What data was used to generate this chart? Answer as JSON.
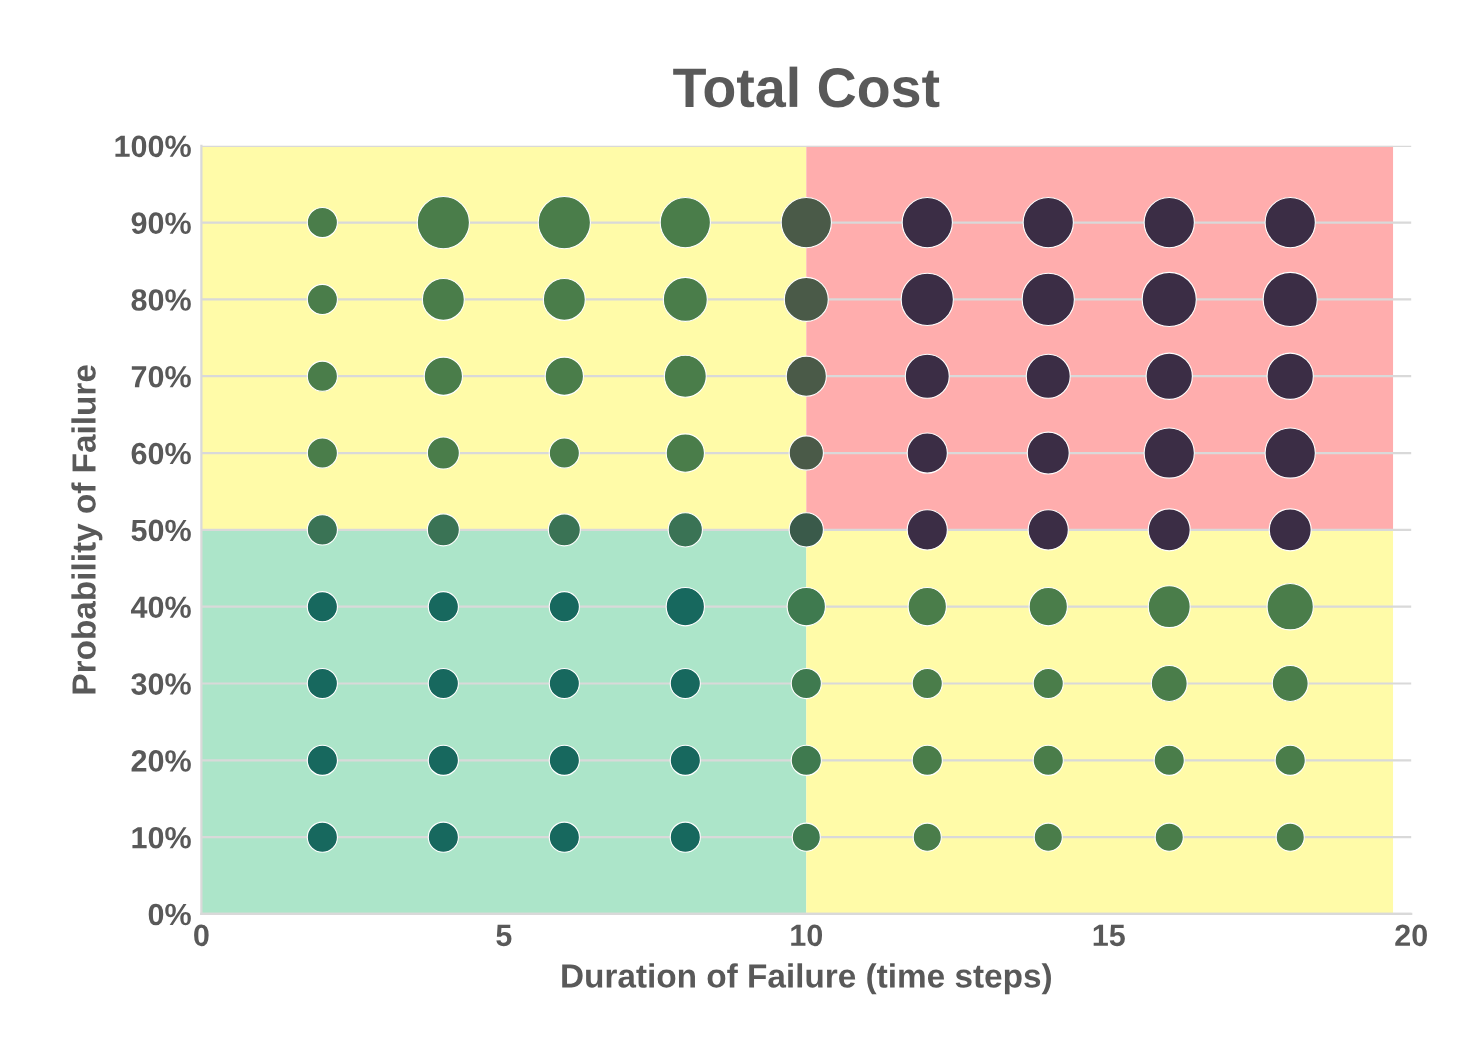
{
  "chart_data": {
    "type": "bubble",
    "title": "Total Cost",
    "xlabel": "Duration of Failure (time steps)",
    "ylabel": "Probability of Failure",
    "xlim": [
      0,
      20
    ],
    "xticks": [
      0,
      5,
      10,
      15,
      20
    ],
    "ylim": [
      0,
      100
    ],
    "yticks": [
      {
        "value": 0,
        "label": "0%"
      },
      {
        "value": 10,
        "label": "10%"
      },
      {
        "value": 20,
        "label": "20%"
      },
      {
        "value": 30,
        "label": "30%"
      },
      {
        "value": 40,
        "label": "40%"
      },
      {
        "value": 50,
        "label": "50%"
      },
      {
        "value": 60,
        "label": "60%"
      },
      {
        "value": 70,
        "label": "70%"
      },
      {
        "value": 80,
        "label": "80%"
      },
      {
        "value": 90,
        "label": "90%"
      },
      {
        "value": 100,
        "label": "100%"
      }
    ],
    "grid": "y",
    "series": [
      {
        "x": [
          2,
          4,
          6,
          8,
          10,
          12,
          14,
          16,
          18,
          2,
          4,
          6,
          8,
          10,
          12,
          14,
          16,
          18,
          2,
          4,
          6,
          8,
          10,
          12,
          14,
          16,
          18,
          2,
          4,
          6,
          8,
          10,
          12,
          14,
          16,
          18,
          2,
          4,
          6,
          8,
          10,
          12,
          14,
          16,
          18,
          2,
          4,
          6,
          8,
          10,
          12,
          14,
          16,
          18,
          2,
          4,
          6,
          8,
          10,
          12,
          14,
          16,
          18,
          2,
          4,
          6,
          8,
          10,
          12,
          14,
          16,
          18,
          2,
          4,
          6,
          8,
          10,
          12,
          14,
          16,
          18
        ],
        "values": [
          90,
          90,
          90,
          90,
          90,
          90,
          90,
          90,
          90,
          80,
          80,
          80,
          80,
          80,
          80,
          80,
          80,
          80,
          70,
          70,
          70,
          70,
          70,
          70,
          70,
          70,
          70,
          60,
          60,
          60,
          60,
          60,
          60,
          60,
          60,
          60,
          50,
          50,
          50,
          50,
          50,
          50,
          50,
          50,
          50,
          40,
          40,
          40,
          40,
          40,
          40,
          40,
          40,
          40,
          30,
          30,
          30,
          30,
          30,
          30,
          30,
          30,
          30,
          20,
          20,
          20,
          20,
          20,
          20,
          20,
          20,
          20,
          10,
          10,
          10,
          10,
          10,
          10,
          10,
          10,
          10
        ],
        "sizes": [
          0.31,
          0.93,
          0.93,
          0.86,
          0.86,
          0.86,
          0.86,
          0.86,
          0.86,
          0.31,
          0.6,
          0.6,
          0.66,
          0.66,
          0.93,
          0.93,
          1,
          1,
          0.31,
          0.5,
          0.5,
          0.6,
          0.55,
          0.66,
          0.66,
          0.73,
          0.73,
          0.31,
          0.35,
          0.31,
          0.5,
          0.4,
          0.55,
          0.6,
          0.86,
          0.86,
          0.31,
          0.35,
          0.35,
          0.4,
          0.4,
          0.55,
          0.55,
          0.6,
          0.6,
          0.31,
          0.31,
          0.31,
          0.5,
          0.5,
          0.5,
          0.5,
          0.6,
          0.73,
          0.31,
          0.31,
          0.31,
          0.31,
          0.31,
          0.31,
          0.31,
          0.44,
          0.44,
          0.31,
          0.31,
          0.31,
          0.31,
          0.31,
          0.31,
          0.31,
          0.31,
          0.31,
          0.31,
          0.31,
          0.31,
          0.31,
          0.27,
          0.27,
          0.27,
          0.27,
          0.27
        ],
        "colors": [
          "#4a7d4a",
          "#4a7d4a",
          "#4a7d4a",
          "#4a7d4a",
          "#4a5a48",
          "#3b2d45",
          "#3b2d45",
          "#3b2d45",
          "#3b2d45",
          "#4a7d4a",
          "#4a7d4a",
          "#4a7d4a",
          "#4a7d4a",
          "#4a5a48",
          "#3b2d45",
          "#3b2d45",
          "#3b2d45",
          "#3b2d45",
          "#4a7d4a",
          "#4a7d4a",
          "#4a7d4a",
          "#4a7d4a",
          "#4a5a48",
          "#3b2d45",
          "#3b2d45",
          "#3b2d45",
          "#3b2d45",
          "#4a7d4a",
          "#4a7d4a",
          "#4a7d4a",
          "#4a7d4a",
          "#4a5a48",
          "#3b2d45",
          "#3b2d45",
          "#3b2d45",
          "#3b2d45",
          "#3a7355",
          "#3a7355",
          "#3a7355",
          "#3a7355",
          "#3a5a4a",
          "#3b2d45",
          "#3b2d45",
          "#3b2d45",
          "#3b2d45",
          "#17685e",
          "#17685e",
          "#17685e",
          "#17685e",
          "#3f7a4f",
          "#4a7d4a",
          "#4a7d4a",
          "#4a7d4a",
          "#4a7d4a",
          "#17685e",
          "#17685e",
          "#17685e",
          "#17685e",
          "#3f7a4f",
          "#4a7d4a",
          "#4a7d4a",
          "#4a7d4a",
          "#4a7d4a",
          "#17685e",
          "#17685e",
          "#17685e",
          "#17685e",
          "#3f7a4f",
          "#4a7d4a",
          "#4a7d4a",
          "#4a7d4a",
          "#4a7d4a",
          "#17685e",
          "#17685e",
          "#17685e",
          "#17685e",
          "#3f7a4f",
          "#4a7d4a",
          "#4a7d4a",
          "#4a7d4a",
          "#4a7d4a"
        ]
      }
    ]
  }
}
